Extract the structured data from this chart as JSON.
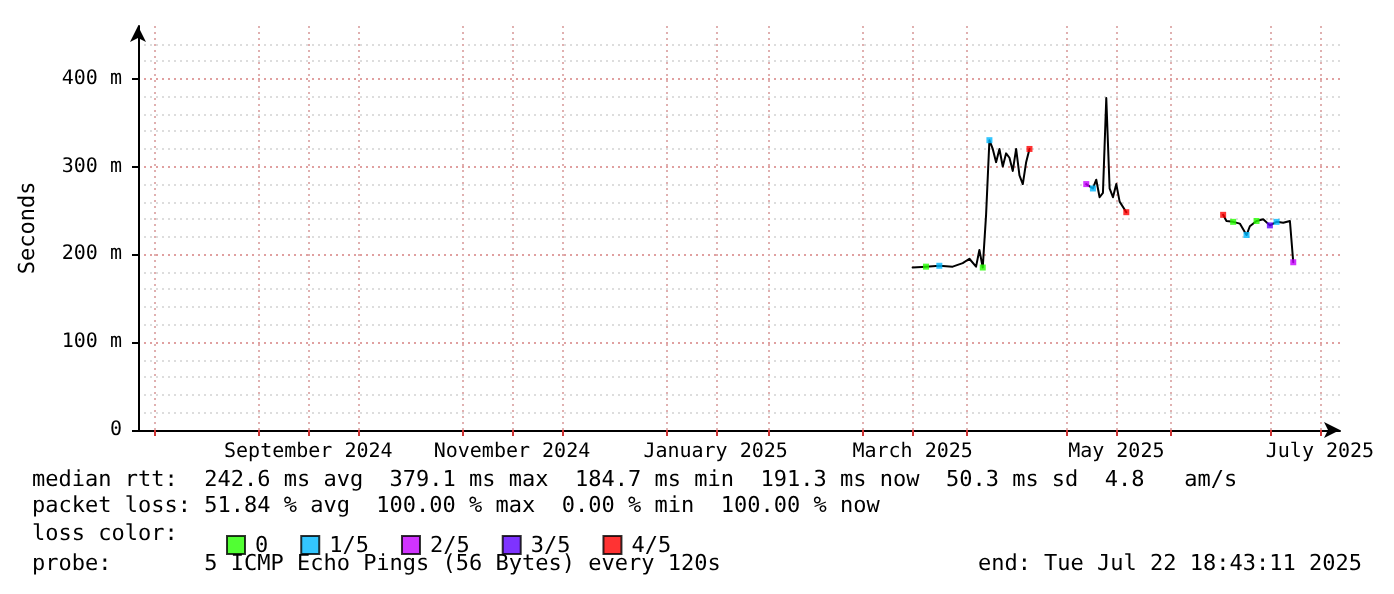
{
  "chart_data": {
    "type": "line",
    "ylabel": "Seconds",
    "legend_title": "loss color:",
    "legend": "bottom",
    "grid": true,
    "marker": "none",
    "line_style": "solid",
    "xlim": [
      "2024-07-27",
      "2025-07-22"
    ],
    "xticks": [
      {
        "value": "2024-08-01",
        "label": null
      },
      {
        "value": "2024-09-01",
        "label": null
      },
      {
        "value": "2024-10-01",
        "label": null
      },
      {
        "value": "2024-11-01",
        "label": null
      },
      {
        "value": "2024-12-01",
        "label": null
      },
      {
        "value": "2025-01-01",
        "label": null
      },
      {
        "value": "2025-02-01",
        "label": null
      },
      {
        "value": "2025-03-01",
        "label": null
      },
      {
        "value": "2025-04-01",
        "label": null
      },
      {
        "value": "2025-05-01",
        "label": null
      },
      {
        "value": "2025-06-01",
        "label": null
      },
      {
        "value": "2025-07-01",
        "label": null
      },
      {
        "value": "2024-09-16",
        "label": "September 2024"
      },
      {
        "value": "2024-11-16",
        "label": "November 2024"
      },
      {
        "value": "2025-01-16",
        "label": "January 2025"
      },
      {
        "value": "2025-03-16",
        "label": "March 2025"
      },
      {
        "value": "2025-05-16",
        "label": "May 2025"
      },
      {
        "value": "2025-07-16",
        "label": "July 2025"
      }
    ],
    "ylim": [
      0,
      460
    ],
    "yticks": [
      {
        "value": 0,
        "label": "0"
      },
      {
        "value": 100,
        "label": "100 m"
      },
      {
        "value": 200,
        "label": "200 m"
      },
      {
        "value": 300,
        "label": "300 m"
      },
      {
        "value": 400,
        "label": "400 m"
      }
    ],
    "series": [
      {
        "color": "#000000",
        "x": [
          "2025-03-16",
          "2025-03-20",
          "2025-03-24",
          "2025-03-28",
          "2025-03-31",
          "2025-04-02",
          "2025-04-04",
          "2025-04-05",
          "2025-04-06",
          "2025-04-07",
          "2025-04-08",
          "2025-04-09",
          "2025-04-10",
          "2025-04-11",
          "2025-04-12",
          "2025-04-13",
          "2025-04-14",
          "2025-04-15",
          "2025-04-16",
          "2025-04-17",
          "2025-04-18",
          "2025-04-19",
          "2025-04-20",
          "2025-04-25",
          "2025-05-07",
          "2025-05-09",
          "2025-05-10",
          "2025-05-11",
          "2025-05-12",
          "2025-05-13",
          "2025-05-14",
          "2025-05-15",
          "2025-05-16",
          "2025-05-17",
          "2025-05-19",
          "2025-06-01",
          "2025-06-17",
          "2025-06-18",
          "2025-06-20",
          "2025-06-22",
          "2025-06-24",
          "2025-06-25",
          "2025-06-27",
          "2025-06-29",
          "2025-07-01",
          "2025-07-03",
          "2025-07-05",
          "2025-07-07",
          "2025-07-08"
        ],
        "values": [
          185,
          186,
          187,
          186,
          190,
          195,
          186,
          205,
          185,
          245,
          330,
          320,
          305,
          320,
          300,
          315,
          310,
          295,
          320,
          290,
          280,
          305,
          320,
          null,
          280,
          275,
          285,
          265,
          270,
          378,
          275,
          265,
          280,
          260,
          248,
          null,
          245,
          238,
          237,
          235,
          222,
          232,
          238,
          240,
          233,
          237,
          236,
          238,
          191
        ]
      },
      {
        "type": "scatter",
        "marker": "square",
        "name": "0",
        "color": "#26ff00",
        "x": [
          "2025-03-20",
          "2025-04-06",
          "2025-06-20",
          "2025-06-27"
        ],
        "values": [
          186,
          185,
          237,
          238
        ]
      },
      {
        "type": "scatter",
        "marker": "square",
        "name": "1/5",
        "color": "#00b8ff",
        "x": [
          "2025-03-24",
          "2025-04-08",
          "2025-05-09",
          "2025-06-24",
          "2025-07-03"
        ],
        "values": [
          187,
          330,
          275,
          222,
          237
        ]
      },
      {
        "type": "scatter",
        "marker": "square",
        "name": "2/5",
        "color": "#c600ff",
        "x": [
          "2025-05-07",
          "2025-07-08"
        ],
        "values": [
          280,
          191
        ]
      },
      {
        "type": "scatter",
        "marker": "square",
        "name": "3/5",
        "color": "#5e00ff",
        "x": [
          "2025-07-01"
        ],
        "values": [
          233
        ]
      },
      {
        "type": "scatter",
        "marker": "square",
        "name": "4/5",
        "color": "#ff0000",
        "x": [
          "2025-04-20",
          "2025-05-19",
          "2025-06-17"
        ],
        "values": [
          320,
          248,
          245
        ]
      }
    ],
    "annotations": [
      "median rtt:  242.6 ms avg  379.1 ms max  184.7 ms min  191.3 ms now  50.3 ms sd  4.8   am/s",
      "packet loss: 51.84 % avg  100.00 % max  0.00 % min  100.00 % now",
      "probe:       5 ICMP Echo Pings (56 Bytes) every 120s",
      "end: Tue Jul 22 18:43:11 2025"
    ]
  }
}
